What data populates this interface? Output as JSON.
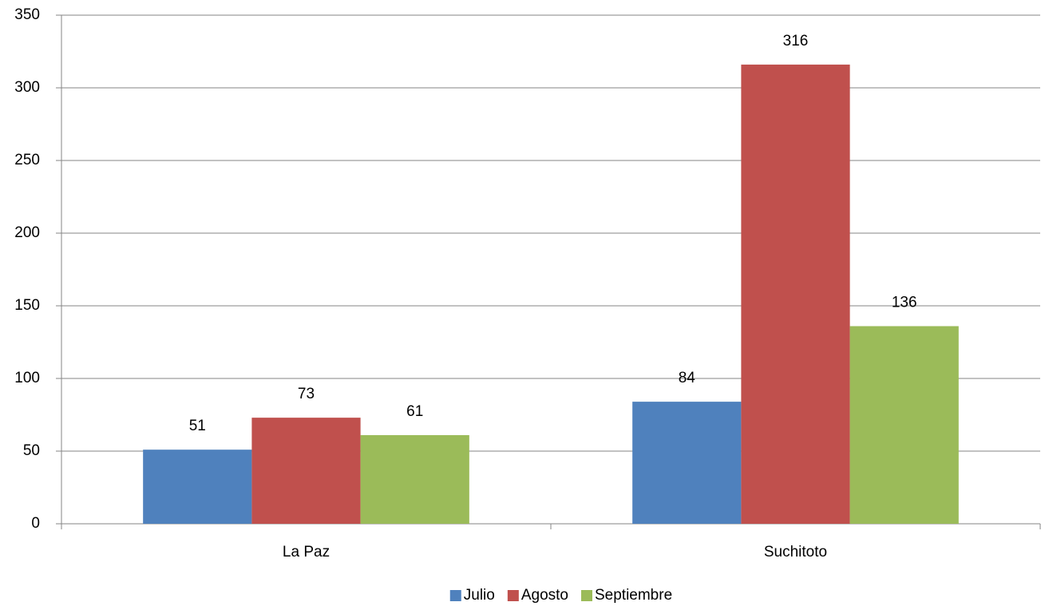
{
  "chart_data": {
    "type": "bar",
    "categories": [
      "La Paz",
      "Suchitoto"
    ],
    "series": [
      {
        "name": "Julio",
        "color": "#4f81bd",
        "values": [
          51,
          84
        ]
      },
      {
        "name": "Agosto",
        "color": "#c0504d",
        "values": [
          73,
          316
        ]
      },
      {
        "name": "Septiembre",
        "color": "#9bbb59",
        "values": [
          61,
          136
        ]
      }
    ],
    "ylim": [
      0,
      350
    ],
    "yticks": [
      0,
      50,
      100,
      150,
      200,
      250,
      300,
      350
    ],
    "grid": true,
    "legend": "bottom"
  }
}
